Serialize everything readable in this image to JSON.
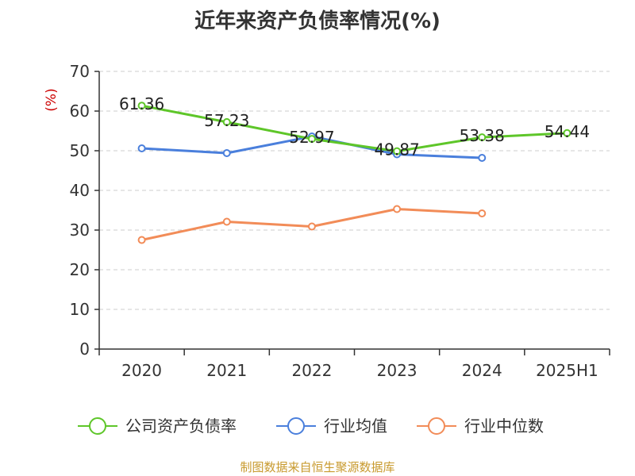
{
  "title": "近年来资产负债率情况(%)",
  "source": "制图数据来自恒生聚源数据库",
  "colors": {
    "company": "#5ec629",
    "industry_avg": "#4a7fdc",
    "industry_median": "#f28c58",
    "source": "#c89a2e",
    "unit": "#cc0000"
  },
  "chart_data": {
    "type": "line",
    "title": "近年来资产负债率情况(%)",
    "ylabel": "(%)",
    "xlabel": "",
    "categories": [
      "2020",
      "2021",
      "2022",
      "2023",
      "2024",
      "2025H1"
    ],
    "ylim": [
      0,
      70
    ],
    "yticks": [
      0,
      10,
      20,
      30,
      40,
      50,
      60,
      70
    ],
    "grid": true,
    "legend_position": "bottom",
    "series": [
      {
        "name": "公司资产负债率",
        "values": [
          61.36,
          57.23,
          52.97,
          49.87,
          53.38,
          54.44
        ],
        "labels": [
          "61.36",
          "57.23",
          "52.97",
          "49.87",
          "53.38",
          "54.44"
        ]
      },
      {
        "name": "行业均值",
        "values": [
          50.6,
          49.4,
          53.6,
          49.1,
          48.2,
          null
        ]
      },
      {
        "name": "行业中位数",
        "values": [
          27.5,
          32.1,
          30.9,
          35.3,
          34.2,
          null
        ]
      }
    ]
  }
}
